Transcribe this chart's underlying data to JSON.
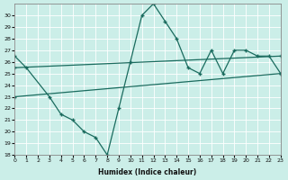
{
  "background_color": "#cbeee8",
  "grid_color": "#b8ddd8",
  "line_color": "#1a6b5e",
  "xlabel": "Humidex (Indice chaleur)",
  "xlim": [
    0,
    23
  ],
  "ylim": [
    18,
    31
  ],
  "yticks": [
    18,
    19,
    20,
    21,
    22,
    23,
    24,
    25,
    26,
    27,
    28,
    29,
    30
  ],
  "xticks": [
    0,
    1,
    2,
    3,
    4,
    5,
    6,
    7,
    8,
    9,
    10,
    11,
    12,
    13,
    14,
    15,
    16,
    17,
    18,
    19,
    20,
    21,
    22,
    23
  ],
  "curve1_x": [
    0,
    1,
    3,
    4,
    5,
    6,
    7,
    8,
    9,
    10,
    11,
    12,
    13,
    14,
    15,
    16,
    17,
    18,
    19,
    20,
    21,
    22,
    23
  ],
  "curve1_y": [
    26.5,
    25.5,
    23.0,
    21.5,
    21.0,
    20.0,
    19.5,
    18.0,
    22.0,
    26.0,
    30.0,
    31.0,
    29.5,
    28.0,
    25.5,
    25.0,
    27.0,
    25.0,
    27.0,
    27.0,
    26.5,
    26.5,
    25.0
  ],
  "curve2_x": [
    0,
    23
  ],
  "curve2_y": [
    25.5,
    26.5
  ],
  "curve3_x": [
    0,
    23
  ],
  "curve3_y": [
    23.0,
    25.0
  ]
}
